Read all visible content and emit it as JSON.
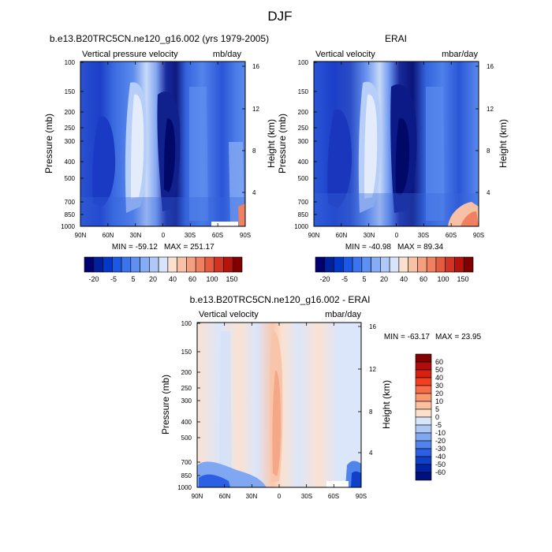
{
  "figure": {
    "title": "DJF",
    "colors": {
      "topbar": [
        "#000070",
        "#00209c",
        "#0038c8",
        "#1c58e4",
        "#3c74f0",
        "#5e90f4",
        "#86acf6",
        "#b0c8f8",
        "#d8e4fa",
        "#fbe0d0",
        "#f8c0a4",
        "#f4a080",
        "#ef8060",
        "#e45c40",
        "#d03424",
        "#b4140c",
        "#800000"
      ],
      "diffbar": [
        "#800000",
        "#b00c0c",
        "#d82010",
        "#f04020",
        "#f86c48",
        "#fa9870",
        "#fcc0a0",
        "#fde0cc",
        "#d8e6fa",
        "#aec8f6",
        "#80a8f2",
        "#5084ec",
        "#2c60e4",
        "#1040c8",
        "#0024a4",
        "#00107c"
      ]
    },
    "top_colorbar_labels": [
      "-20",
      "-5",
      "5",
      "20",
      "40",
      "60",
      "100",
      "150"
    ],
    "diff_colorbar_labels": [
      "60",
      "50",
      "40",
      "30",
      "20",
      "10",
      "5",
      "0",
      "-5",
      "-10",
      "-20",
      "-30",
      "-40",
      "-50",
      "-60"
    ]
  },
  "chart_data": [
    {
      "type": "heatmap",
      "panel": "model",
      "title": "b.e13.B20TRC5CN.ne120_g16.002 (yrs 1979-2005)",
      "left_string": "Vertical pressure velocity",
      "right_string": "mb/day",
      "xlabel": "",
      "ylabel": "Pressure (mb)",
      "y2label": "Height (km)",
      "x_ticks": [
        "90N",
        "60N",
        "30N",
        "0",
        "30S",
        "60S",
        "90S"
      ],
      "y_ticks": [
        "100",
        "150",
        "200",
        "250",
        "300",
        "400",
        "500",
        "700",
        "850",
        "1000"
      ],
      "y2_ticks": [
        "16",
        "12",
        "8",
        "4"
      ],
      "x_range": [
        90,
        -90
      ],
      "y_range": [
        100,
        1000
      ],
      "min_label": "MIN = -59.12",
      "max_label": "MAX = 251.17",
      "min": -59.12,
      "max": 251.17
    },
    {
      "type": "heatmap",
      "panel": "obs",
      "title": "ERAI",
      "left_string": "Vertical velocity",
      "right_string": "mbar/day",
      "xlabel": "",
      "ylabel": "Pressure (mb)",
      "y2label": "Height (km)",
      "x_ticks": [
        "90N",
        "60N",
        "30N",
        "0",
        "30S",
        "60S",
        "90S"
      ],
      "y_ticks": [
        "100",
        "150",
        "200",
        "250",
        "300",
        "400",
        "500",
        "700",
        "850",
        "1000"
      ],
      "y2_ticks": [
        "16",
        "12",
        "8",
        "4"
      ],
      "x_range": [
        90,
        -90
      ],
      "y_range": [
        100,
        1000
      ],
      "min_label": "MIN = -40.98",
      "max_label": "MAX =  89.34",
      "min": -40.98,
      "max": 89.34
    },
    {
      "type": "heatmap",
      "panel": "difference",
      "title": "b.e13.B20TRC5CN.ne120_g16.002 - ERAI",
      "left_string": "Vertical velocity",
      "right_string": "mbar/day",
      "xlabel": "",
      "ylabel": "Pressure (mb)",
      "y2label": "Height (km)",
      "x_ticks": [
        "90N",
        "60N",
        "30N",
        "0",
        "30S",
        "60S",
        "90S"
      ],
      "y_ticks": [
        "100",
        "150",
        "200",
        "250",
        "300",
        "400",
        "500",
        "700",
        "850",
        "1000"
      ],
      "y2_ticks": [
        "16",
        "12",
        "8",
        "4"
      ],
      "x_range": [
        90,
        -90
      ],
      "y_range": [
        100,
        1000
      ],
      "min_label": "MIN = -63.17",
      "max_label": "MAX =  23.95",
      "min": -63.17,
      "max": 23.95
    }
  ]
}
